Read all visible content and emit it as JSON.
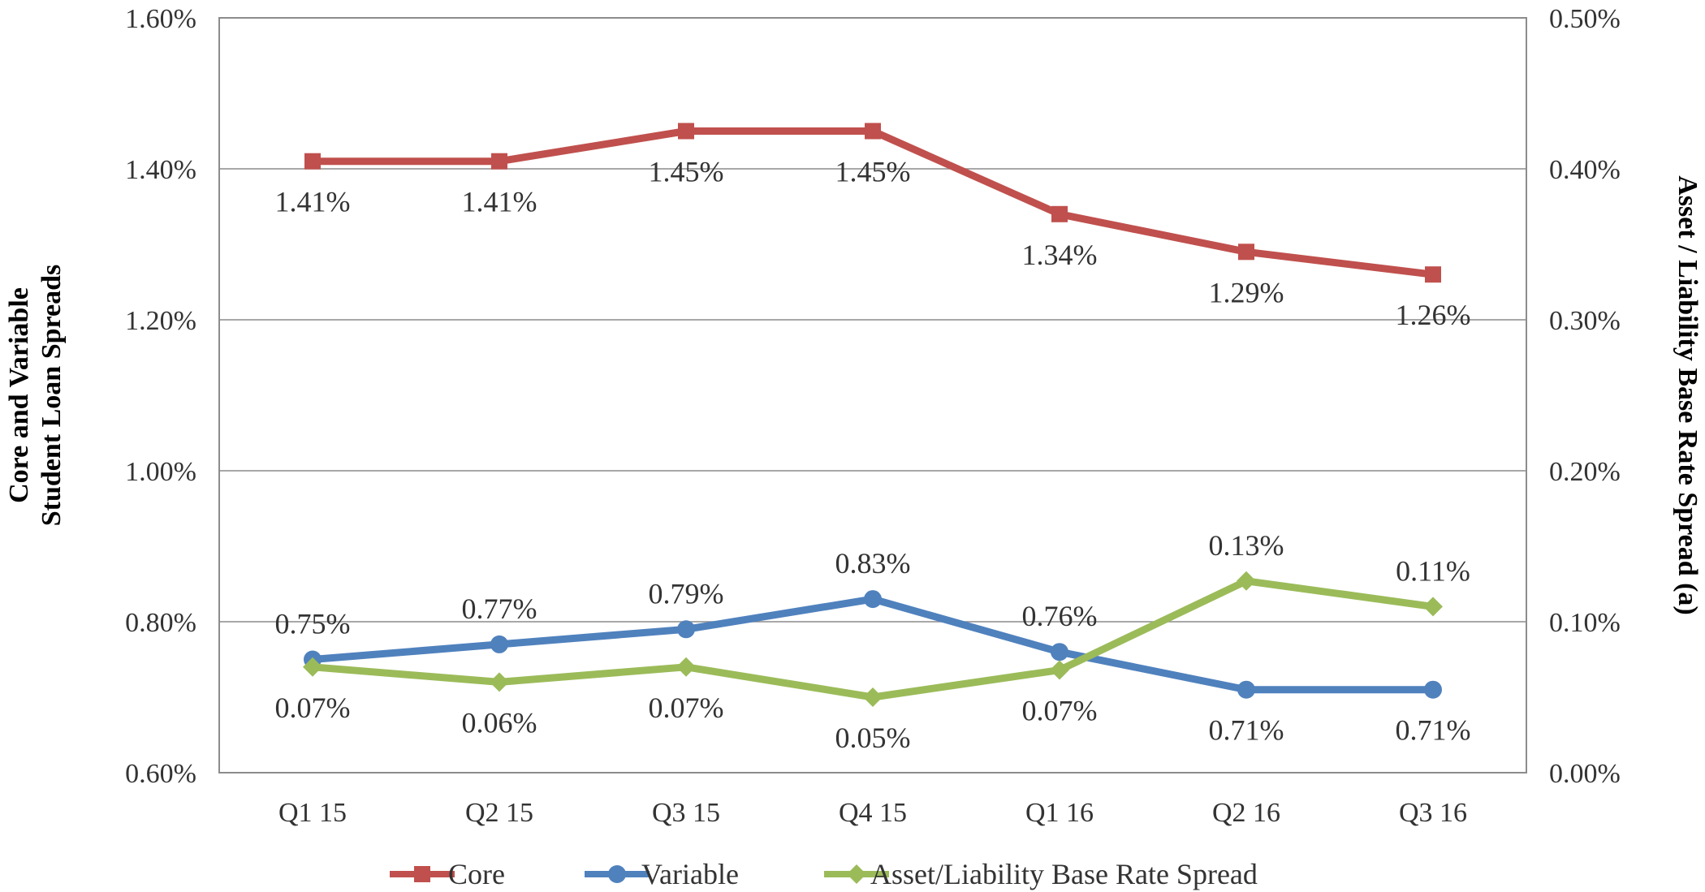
{
  "chart_data": {
    "type": "line",
    "title": "",
    "categories": [
      "Q1 15",
      "Q2 15",
      "Q3 15",
      "Q4 15",
      "Q1 16",
      "Q2 16",
      "Q3 16"
    ],
    "ylabel_left_line1": "Core and Variable",
    "ylabel_left_line2": "Student Loan Spreads",
    "ylabel_right": "Asset / Liability Base Rate Spread (a)",
    "ylim_left": [
      0.6,
      1.6
    ],
    "ylim_right": [
      0.0,
      0.5
    ],
    "yticks_left": [
      "0.60%",
      "0.80%",
      "1.00%",
      "1.20%",
      "1.40%",
      "1.60%"
    ],
    "yticks_right": [
      "0.00%",
      "0.10%",
      "0.20%",
      "0.30%",
      "0.40%",
      "0.50%"
    ],
    "gridlines": true,
    "legend_position": "bottom",
    "series": [
      {
        "name": "Core",
        "axis": "left",
        "color": "#C0504D",
        "marker": "square",
        "values": [
          1.41,
          1.41,
          1.45,
          1.45,
          1.34,
          1.29,
          1.26
        ],
        "labels": [
          "1.41%",
          "1.41%",
          "1.45%",
          "1.45%",
          "1.34%",
          "1.29%",
          "1.26%"
        ],
        "label_pos": [
          "below",
          "below",
          "below",
          "below",
          "below",
          "below",
          "below"
        ]
      },
      {
        "name": "Variable",
        "axis": "left",
        "color": "#4F81BD",
        "marker": "circle",
        "values": [
          0.75,
          0.77,
          0.79,
          0.83,
          0.76,
          0.71,
          0.71
        ],
        "labels": [
          "0.75%",
          "0.77%",
          "0.79%",
          "0.83%",
          "0.76%",
          "0.71%",
          "0.71%"
        ],
        "label_pos": [
          "above",
          "above",
          "above",
          "above",
          "above",
          "below",
          "below"
        ]
      },
      {
        "name": "Asset/Liability Base Rate Spread",
        "axis": "right",
        "color": "#9BBB59",
        "marker": "diamond",
        "values": [
          0.07,
          0.06,
          0.07,
          0.05,
          0.068,
          0.127,
          0.11
        ],
        "labels": [
          "0.07%",
          "0.06%",
          "0.07%",
          "0.05%",
          "0.07%",
          "0.13%",
          "0.11%"
        ],
        "label_pos": [
          "below",
          "below",
          "below",
          "below",
          "below",
          "above",
          "above"
        ]
      }
    ]
  }
}
